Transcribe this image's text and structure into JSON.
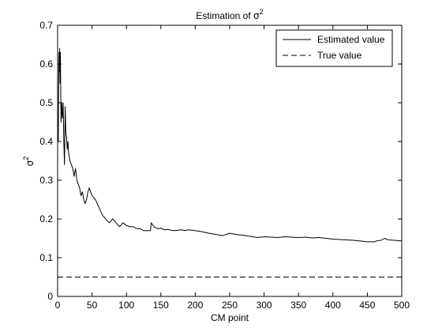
{
  "chart_data": {
    "type": "line",
    "title_prefix": "Estimation of ",
    "title_sigma": "σ",
    "title_exp": "2",
    "xlabel": "CM point",
    "ylabel_sigma": "σ",
    "ylabel_exp": "2",
    "xlim": [
      0,
      500
    ],
    "ylim": [
      0,
      0.7
    ],
    "xticks": [
      0,
      50,
      100,
      150,
      200,
      250,
      300,
      350,
      400,
      450,
      500
    ],
    "yticks": [
      0,
      0.1,
      0.2,
      0.3,
      0.4,
      0.5,
      0.6,
      0.7
    ],
    "xtick_labels": [
      "0",
      "50",
      "100",
      "150",
      "200",
      "250",
      "300",
      "350",
      "400",
      "450",
      "500"
    ],
    "ytick_labels": [
      "0",
      "0.1",
      "0.2",
      "0.3",
      "0.4",
      "0.5",
      "0.6",
      "0.7"
    ],
    "grid": false,
    "legend_position": "top-right",
    "series": [
      {
        "name": "Estimated value",
        "style": "solid",
        "color": "#000000",
        "x": [
          1,
          1.5,
          2,
          2.5,
          3,
          3.5,
          4,
          5,
          6,
          7,
          8,
          9,
          10,
          11,
          12,
          13,
          14,
          15,
          16,
          17,
          18,
          20,
          22,
          24,
          26,
          28,
          30,
          32,
          34,
          36,
          38,
          40,
          42,
          44,
          46,
          48,
          50,
          55,
          60,
          65,
          70,
          75,
          80,
          85,
          90,
          95,
          100,
          105,
          110,
          115,
          120,
          125,
          130,
          135,
          136,
          140,
          145,
          150,
          155,
          160,
          165,
          170,
          175,
          180,
          185,
          190,
          195,
          200,
          210,
          220,
          230,
          240,
          250,
          260,
          270,
          280,
          290,
          300,
          310,
          320,
          330,
          340,
          350,
          360,
          370,
          380,
          390,
          400,
          410,
          420,
          430,
          440,
          450,
          460,
          465,
          470,
          475,
          480,
          490,
          500
        ],
        "values": [
          0.4,
          0.56,
          0.63,
          0.58,
          0.64,
          0.55,
          0.63,
          0.45,
          0.5,
          0.46,
          0.5,
          0.4,
          0.34,
          0.49,
          0.42,
          0.41,
          0.38,
          0.4,
          0.37,
          0.36,
          0.35,
          0.34,
          0.33,
          0.31,
          0.33,
          0.3,
          0.29,
          0.28,
          0.26,
          0.27,
          0.25,
          0.24,
          0.25,
          0.27,
          0.28,
          0.27,
          0.26,
          0.25,
          0.23,
          0.21,
          0.2,
          0.19,
          0.2,
          0.19,
          0.18,
          0.19,
          0.183,
          0.18,
          0.18,
          0.175,
          0.175,
          0.17,
          0.17,
          0.17,
          0.19,
          0.18,
          0.175,
          0.176,
          0.172,
          0.173,
          0.171,
          0.17,
          0.171,
          0.172,
          0.17,
          0.172,
          0.171,
          0.17,
          0.167,
          0.163,
          0.16,
          0.157,
          0.163,
          0.16,
          0.158,
          0.155,
          0.152,
          0.154,
          0.153,
          0.152,
          0.154,
          0.153,
          0.152,
          0.153,
          0.151,
          0.152,
          0.15,
          0.148,
          0.147,
          0.146,
          0.145,
          0.143,
          0.141,
          0.141,
          0.144,
          0.145,
          0.15,
          0.146,
          0.145,
          0.143
        ]
      },
      {
        "name": "True value",
        "style": "dashed",
        "color": "#000000",
        "x": [
          0,
          500
        ],
        "values": [
          0.05,
          0.05
        ]
      }
    ]
  }
}
